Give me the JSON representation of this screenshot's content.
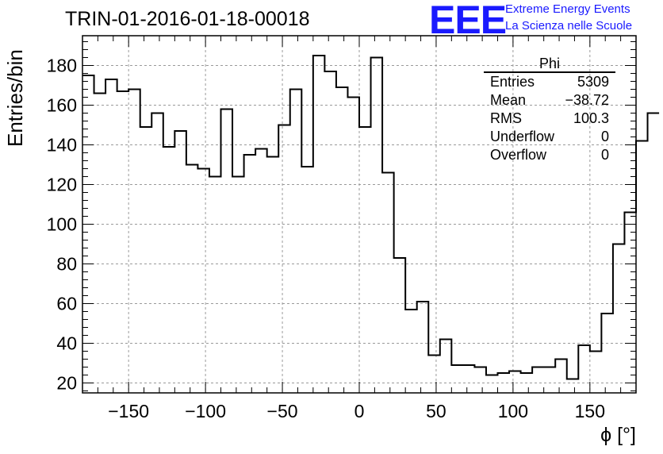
{
  "chart_data": {
    "type": "histogram",
    "title": "TRIN-01-2016-01-18-00018",
    "xlabel": "ϕ [°]",
    "ylabel": "Entries/bin",
    "xlim": [
      -180,
      180
    ],
    "ylim": [
      15,
      195
    ],
    "grid": true,
    "x_ticks": [
      -150,
      -100,
      -50,
      0,
      50,
      100,
      150
    ],
    "x_tick_labels": [
      "−150",
      "−100",
      "−50",
      "0",
      "50",
      "100",
      "150"
    ],
    "y_ticks": [
      20,
      40,
      60,
      80,
      100,
      120,
      140,
      160,
      180
    ],
    "y_tick_labels": [
      "20",
      "40",
      "60",
      "80",
      "100",
      "120",
      "140",
      "160",
      "180"
    ],
    "bin_edges_start": -180,
    "bin_width": 7.5,
    "values": [
      175,
      166,
      173,
      167,
      168,
      149,
      156,
      139,
      147,
      130,
      128,
      124,
      158,
      124,
      135,
      138,
      134,
      150,
      168,
      129,
      185,
      177,
      169,
      164,
      149,
      184,
      126,
      83,
      57,
      61,
      34,
      42,
      29,
      29,
      28,
      24,
      25,
      26,
      25,
      28,
      28,
      32,
      22,
      39,
      36,
      55,
      90,
      106,
      142,
      156
    ]
  },
  "stats_box": {
    "title": "Phi",
    "rows": [
      {
        "label": "Entries",
        "value": "5309"
      },
      {
        "label": "Mean",
        "value": "−38.72"
      },
      {
        "label": "RMS",
        "value": "100.3"
      },
      {
        "label": "Underflow",
        "value": "0"
      },
      {
        "label": "Overflow",
        "value": "0"
      }
    ]
  },
  "logo": {
    "mark": "EEE",
    "line1": "Extreme Energy Events",
    "line2": "La Scienza nelle Scuole",
    "color": "#1a1aff"
  }
}
